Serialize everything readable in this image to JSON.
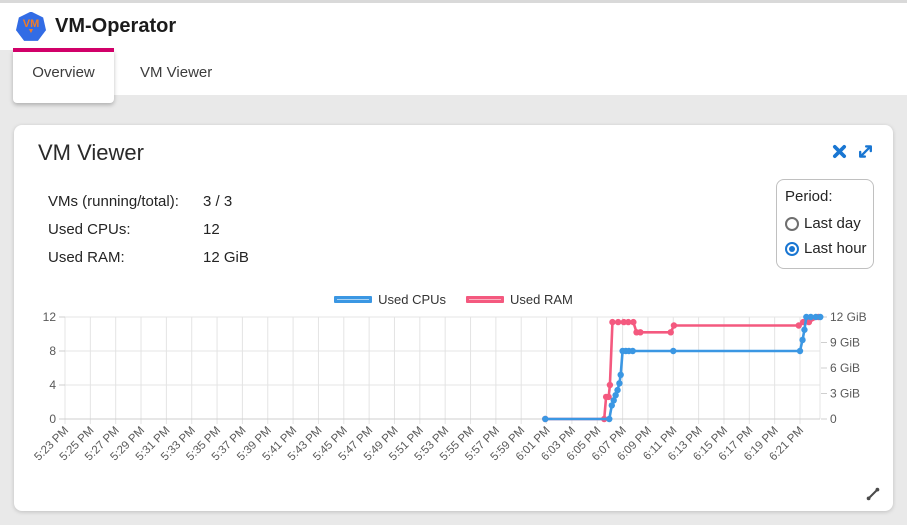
{
  "header": {
    "title": "VM-Operator",
    "logo_text": "VM"
  },
  "tabs": [
    {
      "label": "Overview",
      "active": true
    },
    {
      "label": "VM Viewer",
      "active": false
    }
  ],
  "card": {
    "title": "VM Viewer",
    "stats": [
      {
        "label": "VMs (running/total):",
        "value": "3 / 3"
      },
      {
        "label": "Used CPUs:",
        "value": "12"
      },
      {
        "label": "Used RAM:",
        "value": "12 GiB"
      }
    ],
    "period": {
      "label": "Period:",
      "options": [
        {
          "label": "Last day",
          "selected": false
        },
        {
          "label": "Last hour",
          "selected": true
        }
      ]
    }
  },
  "colors": {
    "accent": "#d10069",
    "icon_blue": "#1976d2",
    "grid": "#e4e4e4",
    "axis_line": "#cfcfcf",
    "axis_text": "#595959"
  },
  "chart_data": {
    "type": "line",
    "title": "",
    "legend_position": "top",
    "grid": true,
    "x_unit": "minutes since 5:23 PM, samples every ~20s",
    "x_tick_labels": [
      "5:23 PM",
      "5:25 PM",
      "5:27 PM",
      "5:29 PM",
      "5:31 PM",
      "5:33 PM",
      "5:35 PM",
      "5:37 PM",
      "5:39 PM",
      "5:41 PM",
      "5:43 PM",
      "5:45 PM",
      "5:47 PM",
      "5:49 PM",
      "5:51 PM",
      "5:53 PM",
      "5:55 PM",
      "5:57 PM",
      "5:59 PM",
      "6:01 PM",
      "6:03 PM",
      "6:05 PM",
      "6:07 PM",
      "6:09 PM",
      "6:11 PM",
      "6:13 PM",
      "6:15 PM",
      "6:17 PM",
      "6:19 PM",
      "6:21 PM"
    ],
    "left_axis": {
      "ticks": [
        "12",
        "8",
        "4",
        "0"
      ],
      "values": [
        12,
        8,
        4,
        0
      ],
      "range": [
        0,
        12
      ]
    },
    "right_axis": {
      "ticks": [
        "12 GiB",
        "9 GiB",
        "6 GiB",
        "3 GiB",
        "0"
      ],
      "values": [
        12,
        9,
        6,
        3,
        0
      ],
      "range": [
        0,
        12
      ]
    },
    "series": [
      {
        "name": "Used CPUs",
        "axis": "left",
        "color": "#3b97e3",
        "fill": "#abd3f3",
        "points": [
          [
            37.9,
            0
          ],
          [
            42.95,
            0
          ],
          [
            43.15,
            1.6
          ],
          [
            43.3,
            2.2
          ],
          [
            43.45,
            2.8
          ],
          [
            43.6,
            3.4
          ],
          [
            43.75,
            4.2
          ],
          [
            43.85,
            5.2
          ],
          [
            44.0,
            8
          ],
          [
            44.25,
            8
          ],
          [
            44.5,
            8
          ],
          [
            44.8,
            8
          ],
          [
            48.0,
            8
          ],
          [
            58.0,
            8
          ],
          [
            58.2,
            9.3
          ],
          [
            58.35,
            10.5
          ],
          [
            58.5,
            12
          ],
          [
            58.85,
            12
          ],
          [
            59.25,
            12
          ],
          [
            59.6,
            12
          ]
        ]
      },
      {
        "name": "Used RAM",
        "axis": "right",
        "color": "#f4597f",
        "fill": "#f9b2c1",
        "points": [
          [
            37.9,
            0
          ],
          [
            42.55,
            0
          ],
          [
            42.7,
            2.6
          ],
          [
            42.9,
            2.6
          ],
          [
            43.0,
            4.0
          ],
          [
            43.2,
            11.4
          ],
          [
            43.65,
            11.4
          ],
          [
            44.1,
            11.4
          ],
          [
            44.45,
            11.4
          ],
          [
            44.85,
            11.4
          ],
          [
            45.1,
            10.2
          ],
          [
            45.4,
            10.2
          ],
          [
            47.8,
            10.2
          ],
          [
            48.05,
            11.0
          ],
          [
            57.9,
            11.0
          ],
          [
            58.25,
            11.4
          ],
          [
            58.7,
            11.4
          ],
          [
            59.45,
            12.0
          ]
        ]
      }
    ]
  }
}
